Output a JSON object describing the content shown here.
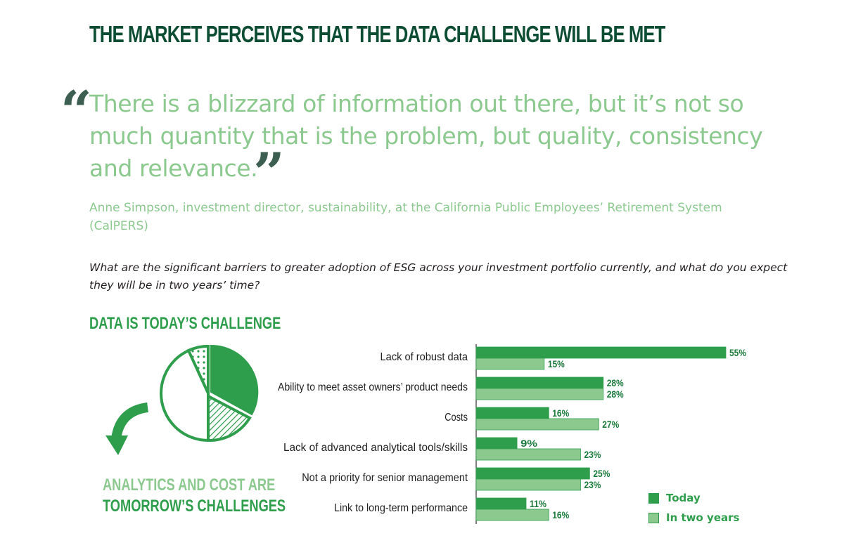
{
  "headline": "THE MARKET PERCEIVES THAT THE DATA CHALLENGE WILL BE MET",
  "quote": "There is a blizzard of information out there, but it’s not so much quantity that is the problem, but quality, consistency and relevance.",
  "attribution": "Anne Simpson, investment director, sustainability, at the California Public Employees’ Retirement System (CalPERS)",
  "question": "What are the significant barriers to greater adoption of ESG across your investment portfolio currently, and what do you expect they will be in two years’ time?",
  "pie_heading": "DATA IS TODAY’S CHALLENGE",
  "tomorrow_line1": "ANALYTICS AND COST ARE",
  "tomorrow_line2": "TOMORROW’S CHALLENGES",
  "colors": {
    "today": "#2e9e4c",
    "two_years": "#8cc98f",
    "dark": "#0d4d33"
  },
  "chart_data": {
    "type": "bar",
    "orientation": "horizontal",
    "categories": [
      "Lack of robust data",
      "Ability to meet asset owners’ product needs",
      "Costs",
      "Lack of advanced analytical tools/skills",
      "Not a priority for senior management",
      "Link to long-term performance"
    ],
    "series": [
      {
        "name": "Today",
        "values": [
          55,
          28,
          16,
          9,
          25,
          11
        ]
      },
      {
        "name": "In two years",
        "values": [
          15,
          28,
          27,
          23,
          23,
          16
        ]
      }
    ],
    "value_suffix": "%",
    "xlim": [
      0,
      55
    ],
    "legend": "bottom-right",
    "grid": false
  }
}
